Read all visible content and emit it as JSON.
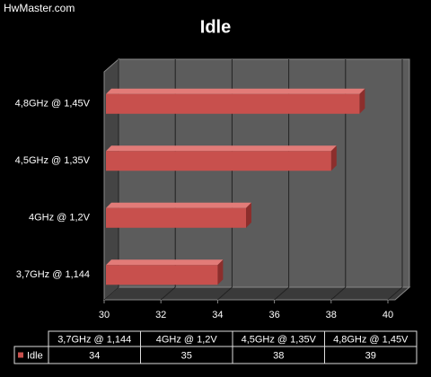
{
  "watermark": "HwMaster.com",
  "chart_data": {
    "type": "bar",
    "orientation": "horizontal",
    "title": "Idle",
    "categories": [
      "3,7GHz @ 1,144",
      "4GHz @ 1,2V",
      "4,5GHz @ 1,35V",
      "4,8GHz @ 1,45V"
    ],
    "series": [
      {
        "name": "Idle",
        "color": "#c8504d",
        "values": [
          34,
          35,
          38,
          39
        ]
      }
    ],
    "xlim": [
      30,
      40
    ],
    "xticks": [
      30,
      32,
      34,
      36,
      38,
      40
    ],
    "grid": true,
    "data_table": true
  }
}
